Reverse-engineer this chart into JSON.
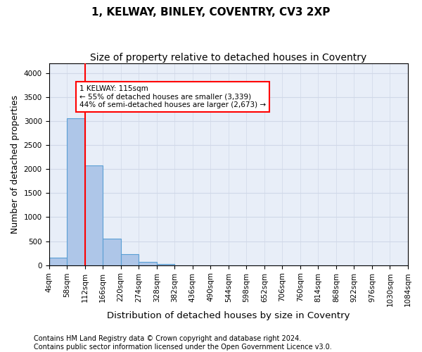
{
  "title": "1, KELWAY, BINLEY, COVENTRY, CV3 2XP",
  "subtitle": "Size of property relative to detached houses in Coventry",
  "xlabel": "Distribution of detached houses by size in Coventry",
  "ylabel": "Number of detached properties",
  "bin_edges": [
    "4sqm",
    "58sqm",
    "112sqm",
    "166sqm",
    "220sqm",
    "274sqm",
    "328sqm",
    "382sqm",
    "436sqm",
    "490sqm",
    "544sqm",
    "598sqm",
    "652sqm",
    "706sqm",
    "760sqm",
    "814sqm",
    "868sqm",
    "922sqm",
    "976sqm",
    "1030sqm",
    "1084sqm"
  ],
  "bar_values": [
    150,
    3060,
    2080,
    560,
    230,
    65,
    30,
    0,
    0,
    0,
    0,
    0,
    0,
    0,
    0,
    0,
    0,
    0,
    0,
    0
  ],
  "bar_color": "#aec6e8",
  "bar_edge_color": "#5a9fd4",
  "vline_position": 1.5,
  "annotation_text": "1 KELWAY: 115sqm\n← 55% of detached houses are smaller (3,339)\n44% of semi-detached houses are larger (2,673) →",
  "annotation_box_color": "white",
  "annotation_box_edgecolor": "red",
  "ylim": [
    0,
    4200
  ],
  "yticks": [
    0,
    500,
    1000,
    1500,
    2000,
    2500,
    3000,
    3500,
    4000
  ],
  "grid_color": "#d0d8e8",
  "background_color": "#e8eef8",
  "footer_line1": "Contains HM Land Registry data © Crown copyright and database right 2024.",
  "footer_line2": "Contains public sector information licensed under the Open Government Licence v3.0.",
  "title_fontsize": 11,
  "subtitle_fontsize": 10,
  "axis_fontsize": 9,
  "tick_fontsize": 7.5,
  "footer_fontsize": 7
}
